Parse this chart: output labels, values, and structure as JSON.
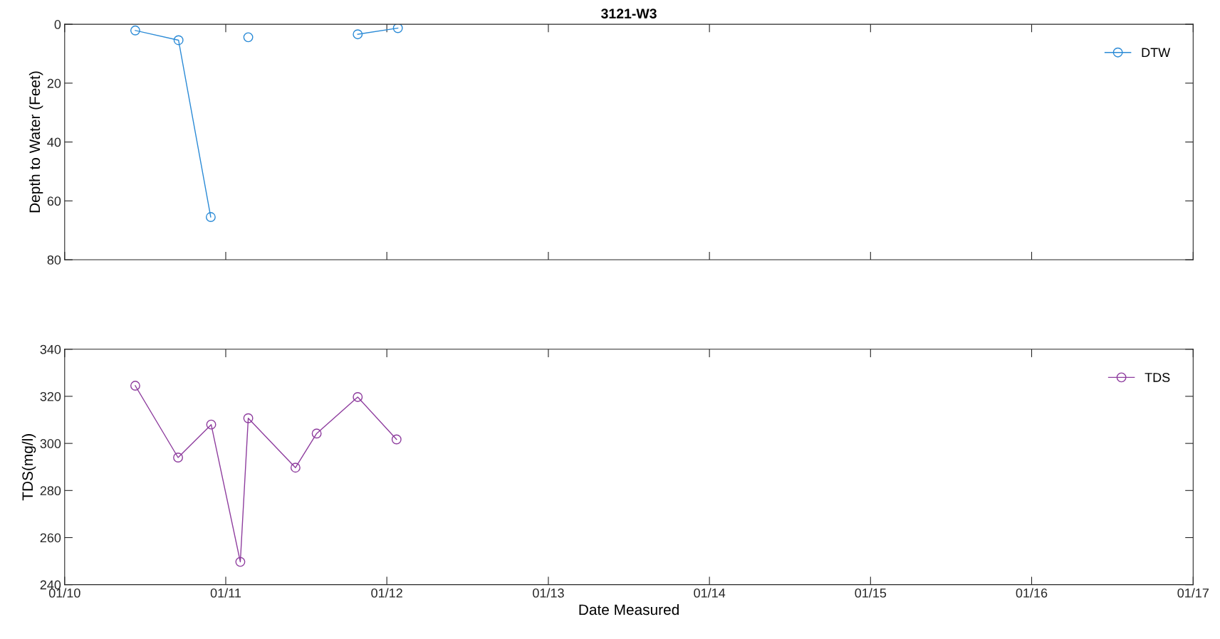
{
  "chart_data": [
    {
      "type": "line",
      "title": "3121-W3",
      "ylabel": "Depth to Water (Feet)",
      "marker": "circle",
      "line_style": "solid",
      "legend": "top right",
      "grid": false,
      "tick_labels": "y",
      "x": [
        "2010-06-10",
        "2010-09-16",
        "2010-11-28",
        "2011-01-01",
        "2011-02-21",
        "2011-07-01",
        "2011-10-27",
        "2012-01-26"
      ],
      "series": [
        {
          "name": "DTW",
          "color": "#2a8ad6",
          "values": [
            2.1,
            5.4,
            65.5,
            null,
            4.4,
            null,
            3.4,
            1.3
          ]
        }
      ],
      "xlim": [
        "2010-01-01",
        "2017-01-01"
      ],
      "xticks": [
        {
          "value": "2010-01-01",
          "label": null
        },
        {
          "value": "2011-01-01",
          "label": null
        },
        {
          "value": "2012-01-01",
          "label": null
        },
        {
          "value": "2013-01-01",
          "label": null
        },
        {
          "value": "2014-01-01",
          "label": null
        },
        {
          "value": "2015-01-01",
          "label": null
        },
        {
          "value": "2016-01-01",
          "label": null
        },
        {
          "value": "2017-01-01",
          "label": null
        }
      ],
      "ylim": [
        80,
        0
      ],
      "yticks": [
        0,
        20,
        40,
        60,
        80
      ]
    },
    {
      "type": "line",
      "xlabel": "Date Measured",
      "ylabel": "TDS(mg/l)",
      "marker": "circle",
      "line_style": "solid",
      "legend": "top right",
      "grid": false,
      "x": [
        "2010-06-10",
        "2010-09-15",
        "2010-11-29",
        "2011-02-03",
        "2011-02-21",
        "2011-06-08",
        "2011-07-26",
        "2011-10-27",
        "2012-01-23"
      ],
      "series": [
        {
          "name": "TDS",
          "color": "#8e3d9e",
          "values": [
            324.5,
            294,
            308,
            249.7,
            310.7,
            289.7,
            304.2,
            319.7,
            301.7
          ]
        }
      ],
      "xlim": [
        "2010-01-01",
        "2017-01-01"
      ],
      "xticks": [
        {
          "value": "2010-01-01",
          "label": "01/10"
        },
        {
          "value": "2011-01-01",
          "label": "01/11"
        },
        {
          "value": "2012-01-01",
          "label": "01/12"
        },
        {
          "value": "2013-01-01",
          "label": "01/13"
        },
        {
          "value": "2014-01-01",
          "label": "01/14"
        },
        {
          "value": "2015-01-01",
          "label": "01/15"
        },
        {
          "value": "2016-01-01",
          "label": "01/16"
        },
        {
          "value": "2017-01-01",
          "label": "01/17"
        }
      ],
      "ylim": [
        240,
        340
      ],
      "yticks": [
        240,
        260,
        280,
        300,
        320,
        340
      ]
    }
  ]
}
